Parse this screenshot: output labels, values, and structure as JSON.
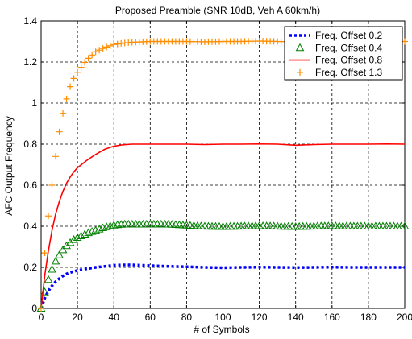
{
  "chart_data": {
    "type": "line",
    "title": "Proposed Preamble (SNR 10dB, Veh A 60km/h)",
    "xlabel": "# of Symbols",
    "ylabel": "AFC Output Frequency",
    "xlim": [
      0,
      200
    ],
    "ylim": [
      0,
      1.4
    ],
    "x_ticks": [
      0,
      20,
      40,
      60,
      80,
      100,
      120,
      140,
      160,
      180,
      200
    ],
    "y_ticks": [
      0,
      0.2,
      0.4,
      0.6,
      0.8,
      1,
      1.2,
      1.4
    ],
    "x_tick_labels": [
      "0",
      "20",
      "40",
      "60",
      "80",
      "100",
      "120",
      "140",
      "160",
      "180",
      "200"
    ],
    "y_tick_labels": [
      "0",
      "0.2",
      "0.4",
      "0.6",
      "0.8",
      "1",
      "1.2",
      "1.4"
    ],
    "grid": true,
    "grid_style": "dashed",
    "legend_position": "top-right",
    "series": [
      {
        "name": "Freq. Offset 0.2",
        "color": "#0000ff",
        "style": "dotted",
        "x": [
          0,
          2,
          4,
          6,
          8,
          10,
          12,
          14,
          16,
          18,
          20,
          25,
          30,
          35,
          40,
          45,
          50,
          60,
          70,
          80,
          90,
          100,
          110,
          120,
          130,
          140,
          150,
          160,
          170,
          180,
          190,
          200
        ],
        "y": [
          0,
          0.05,
          0.085,
          0.11,
          0.13,
          0.145,
          0.158,
          0.168,
          0.175,
          0.18,
          0.185,
          0.193,
          0.2,
          0.205,
          0.21,
          0.212,
          0.212,
          0.208,
          0.205,
          0.203,
          0.2,
          0.198,
          0.2,
          0.201,
          0.2,
          0.199,
          0.2,
          0.201,
          0.2,
          0.2,
          0.2,
          0.2
        ]
      },
      {
        "name": "Freq. Offset 0.4",
        "color": "#008000",
        "style": "triangle",
        "x": [
          0,
          2,
          4,
          6,
          8,
          10,
          12,
          14,
          16,
          18,
          20,
          25,
          30,
          35,
          40,
          45,
          50,
          60,
          70,
          80,
          90,
          100,
          110,
          120,
          130,
          140,
          150,
          160,
          170,
          180,
          190,
          200
        ],
        "y": [
          0,
          0.08,
          0.14,
          0.19,
          0.23,
          0.26,
          0.285,
          0.305,
          0.32,
          0.335,
          0.345,
          0.365,
          0.38,
          0.395,
          0.405,
          0.41,
          0.41,
          0.41,
          0.41,
          0.405,
          0.4,
          0.398,
          0.4,
          0.402,
          0.4,
          0.398,
          0.4,
          0.402,
          0.4,
          0.4,
          0.4,
          0.4
        ]
      },
      {
        "name": "Freq. Offset 0.8",
        "color": "#ff0000",
        "style": "solid",
        "x": [
          0,
          2,
          4,
          6,
          8,
          10,
          12,
          14,
          16,
          18,
          20,
          25,
          30,
          35,
          40,
          45,
          50,
          60,
          70,
          80,
          90,
          100,
          110,
          120,
          130,
          140,
          150,
          160,
          170,
          180,
          190,
          200
        ],
        "y": [
          0,
          0.16,
          0.28,
          0.38,
          0.46,
          0.52,
          0.57,
          0.61,
          0.64,
          0.665,
          0.685,
          0.72,
          0.75,
          0.775,
          0.79,
          0.797,
          0.8,
          0.8,
          0.8,
          0.8,
          0.798,
          0.8,
          0.8,
          0.801,
          0.8,
          0.795,
          0.798,
          0.8,
          0.8,
          0.8,
          0.801,
          0.8
        ]
      },
      {
        "name": "Freq. Offset 1.3",
        "color": "#ff8c00",
        "style": "plus",
        "x": [
          0,
          2,
          4,
          6,
          8,
          10,
          12,
          14,
          16,
          18,
          20,
          25,
          30,
          35,
          40,
          45,
          50,
          60,
          70,
          80,
          90,
          100,
          110,
          120,
          130,
          140,
          150,
          160,
          170,
          180,
          190,
          200
        ],
        "y": [
          0,
          0.27,
          0.45,
          0.6,
          0.74,
          0.86,
          0.95,
          1.02,
          1.08,
          1.12,
          1.15,
          1.21,
          1.25,
          1.27,
          1.285,
          1.292,
          1.296,
          1.3,
          1.3,
          1.3,
          1.298,
          1.3,
          1.3,
          1.302,
          1.3,
          1.298,
          1.3,
          1.3,
          1.3,
          1.302,
          1.3,
          1.3
        ]
      }
    ]
  }
}
